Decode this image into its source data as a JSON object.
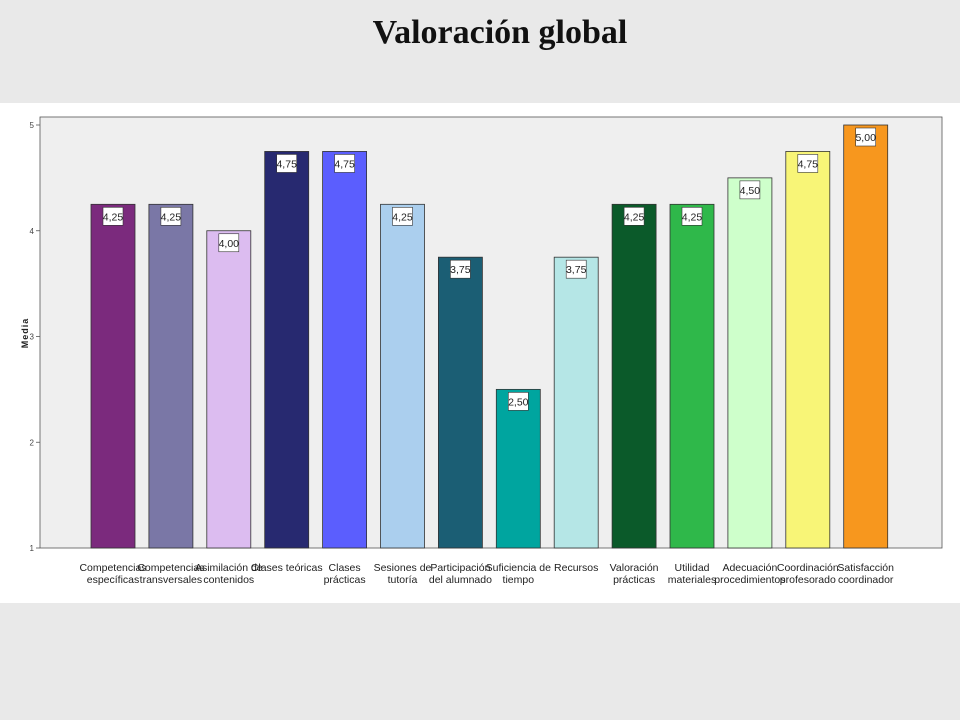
{
  "slide": {
    "title": "Valoración global"
  },
  "chart_data": {
    "type": "bar",
    "title": "Valoración global",
    "xlabel": "",
    "ylabel": "Media",
    "ylim": [
      1,
      5
    ],
    "yticks": [
      1,
      2,
      3,
      4,
      5
    ],
    "grid": false,
    "categories": [
      [
        "Competencias",
        "específicas"
      ],
      [
        "Competencias",
        "transversales"
      ],
      [
        "Asimilación de",
        "contenidos"
      ],
      [
        "Clases teóricas"
      ],
      [
        "Clases",
        "prácticas"
      ],
      [
        "Sesiones de",
        "tutoría"
      ],
      [
        "Participación",
        "del alumnado"
      ],
      [
        "Suficiencia de",
        "tiempo"
      ],
      [
        "Recursos"
      ],
      [
        "Valoración",
        "prácticas"
      ],
      [
        "Utilidad",
        "materiales"
      ],
      [
        "Adecuación",
        "procedimientos"
      ],
      [
        "Coordinación",
        "profesorado"
      ],
      [
        "Satisfacción",
        "coordinador"
      ]
    ],
    "values": [
      4.25,
      4.25,
      4.0,
      4.75,
      4.75,
      4.25,
      3.75,
      2.5,
      3.75,
      4.25,
      4.25,
      4.5,
      4.75,
      5.0
    ],
    "value_labels": [
      "4,25",
      "4,25",
      "4,00",
      "4,75",
      "4,75",
      "4,25",
      "3,75",
      "2,50",
      "3,75",
      "4,25",
      "4,25",
      "4,50",
      "4,75",
      "5,00"
    ],
    "colors": [
      "#7b2a7d",
      "#7a77a6",
      "#dcbcf0",
      "#272970",
      "#5b5efe",
      "#abcfee",
      "#1b5e74",
      "#00a59f",
      "#b5e6e6",
      "#0b5a2a",
      "#2fb84a",
      "#ceffcb",
      "#f8f577",
      "#f7971e"
    ],
    "plot_background": "#efefef"
  }
}
